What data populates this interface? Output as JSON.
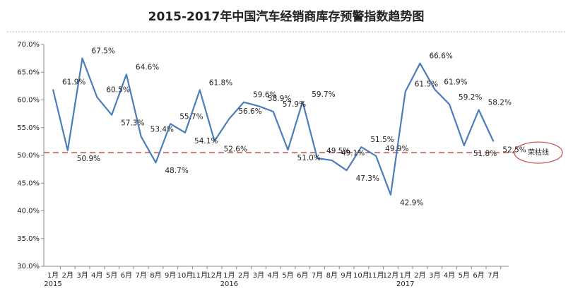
{
  "chart_data": {
    "type": "line",
    "title": "2015-2017年中国汽车经销商库存预警指数趋势图",
    "categories": [
      "1月",
      "2月",
      "3月",
      "4月",
      "5月",
      "6月",
      "7月",
      "8月",
      "9月",
      "10月",
      "11月",
      "12月",
      "1月",
      "2月",
      "3月",
      "4月",
      "5月",
      "6月",
      "7月",
      "8月",
      "9月",
      "10月",
      "11月",
      "12月",
      "1月",
      "2月",
      "3月",
      "4月",
      "5月",
      "6月",
      "7月"
    ],
    "years": [
      "2015",
      null,
      null,
      null,
      null,
      null,
      null,
      null,
      null,
      null,
      null,
      null,
      "2016",
      null,
      null,
      null,
      null,
      null,
      null,
      null,
      null,
      null,
      null,
      null,
      "2017",
      null,
      null,
      null,
      null,
      null,
      null
    ],
    "series": [
      {
        "name": "库存预警指数",
        "color": "#4a7ebb",
        "values": [
          61.9,
          50.9,
          67.5,
          60.5,
          57.3,
          64.6,
          53.4,
          48.7,
          55.7,
          54.1,
          61.8,
          52.6,
          56.6,
          59.6,
          58.9,
          57.9,
          51.0,
          59.7,
          49.5,
          49.1,
          47.3,
          51.5,
          49.9,
          42.9,
          61.5,
          66.6,
          61.9,
          59.2,
          51.8,
          58.2,
          52.5
        ],
        "value_labels": [
          "61.9%",
          "50.9%",
          "67.5%",
          "60.5%",
          "57.3%",
          "64.6%",
          "53.4%",
          "48.7%",
          "55.7%",
          "54.1%",
          "61.8%",
          "52.6%",
          "56.6%",
          "59.6%",
          "58.9%",
          "57.9%",
          "51.0%",
          "59.7%",
          "49.5%",
          "49.1%",
          "47.3%",
          "51.5%",
          "49.9%",
          "42.9%",
          "61.5%",
          "66.6%",
          "61.9%",
          "59.2%",
          "51.8%",
          "58.2%",
          "52.5%"
        ]
      }
    ],
    "reference_line": {
      "value": 50.5,
      "label": "荣枯线",
      "color": "#c0504d"
    },
    "ylim": [
      30,
      70
    ],
    "yticks": [
      {
        "value": 30,
        "label": "30.0%"
      },
      {
        "value": 35,
        "label": "35.0%"
      },
      {
        "value": 40,
        "label": "40.0%"
      },
      {
        "value": 45,
        "label": "45.0%"
      },
      {
        "value": 50,
        "label": "50.0%"
      },
      {
        "value": 55,
        "label": "55.0%"
      },
      {
        "value": 60,
        "label": "60.0%"
      },
      {
        "value": 65,
        "label": "65.0%"
      },
      {
        "value": 70,
        "label": "70.0%"
      }
    ]
  }
}
